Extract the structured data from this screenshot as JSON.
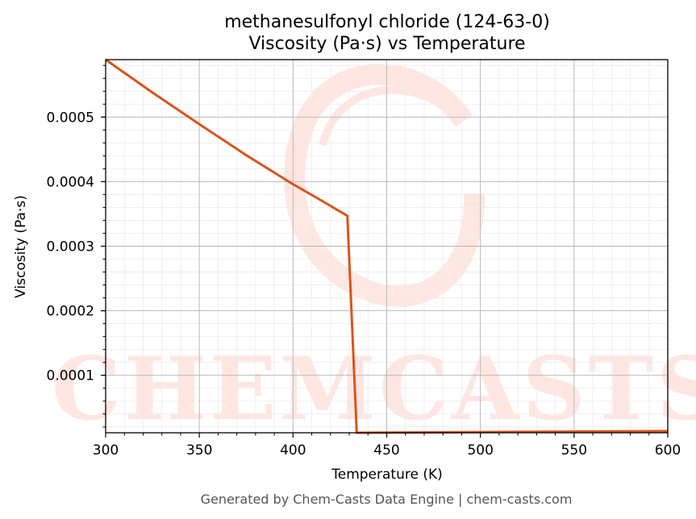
{
  "chart_data": {
    "type": "line",
    "title": "methanesulfonyl chloride (124-63-0)",
    "subtitle": "Viscosity (Pa·s) vs Temperature",
    "xlabel": "Temperature (K)",
    "ylabel": "Viscosity (Pa·s)",
    "xlim": [
      300,
      600
    ],
    "ylim": [
      1.1e-05,
      0.000589
    ],
    "xticks": [
      300,
      350,
      400,
      450,
      500,
      550,
      600
    ],
    "xtick_labels": [
      "300",
      "350",
      "400",
      "450",
      "500",
      "550",
      "600"
    ],
    "yticks": [
      0.0001,
      0.0002,
      0.0003,
      0.0004,
      0.0005
    ],
    "ytick_labels": [
      "0.0001",
      "0.0002",
      "0.0003",
      "0.0004",
      "0.0005"
    ],
    "grid": true,
    "series": [
      {
        "color": "#d9541e",
        "x": [
          300,
          325,
          350,
          375,
          400,
          415,
          429,
          434,
          450,
          500,
          550,
          600
        ],
        "y": [
          0.000589,
          0.000538,
          0.000489,
          0.000441,
          0.000396,
          0.000371,
          0.000347,
          1.1e-05,
          1.13e-05,
          1.21e-05,
          1.29e-05,
          1.37e-05
        ]
      }
    ],
    "watermark": "CHEMCASTS",
    "footer": "Generated by Chem-Casts Data Engine | chem-casts.com"
  }
}
